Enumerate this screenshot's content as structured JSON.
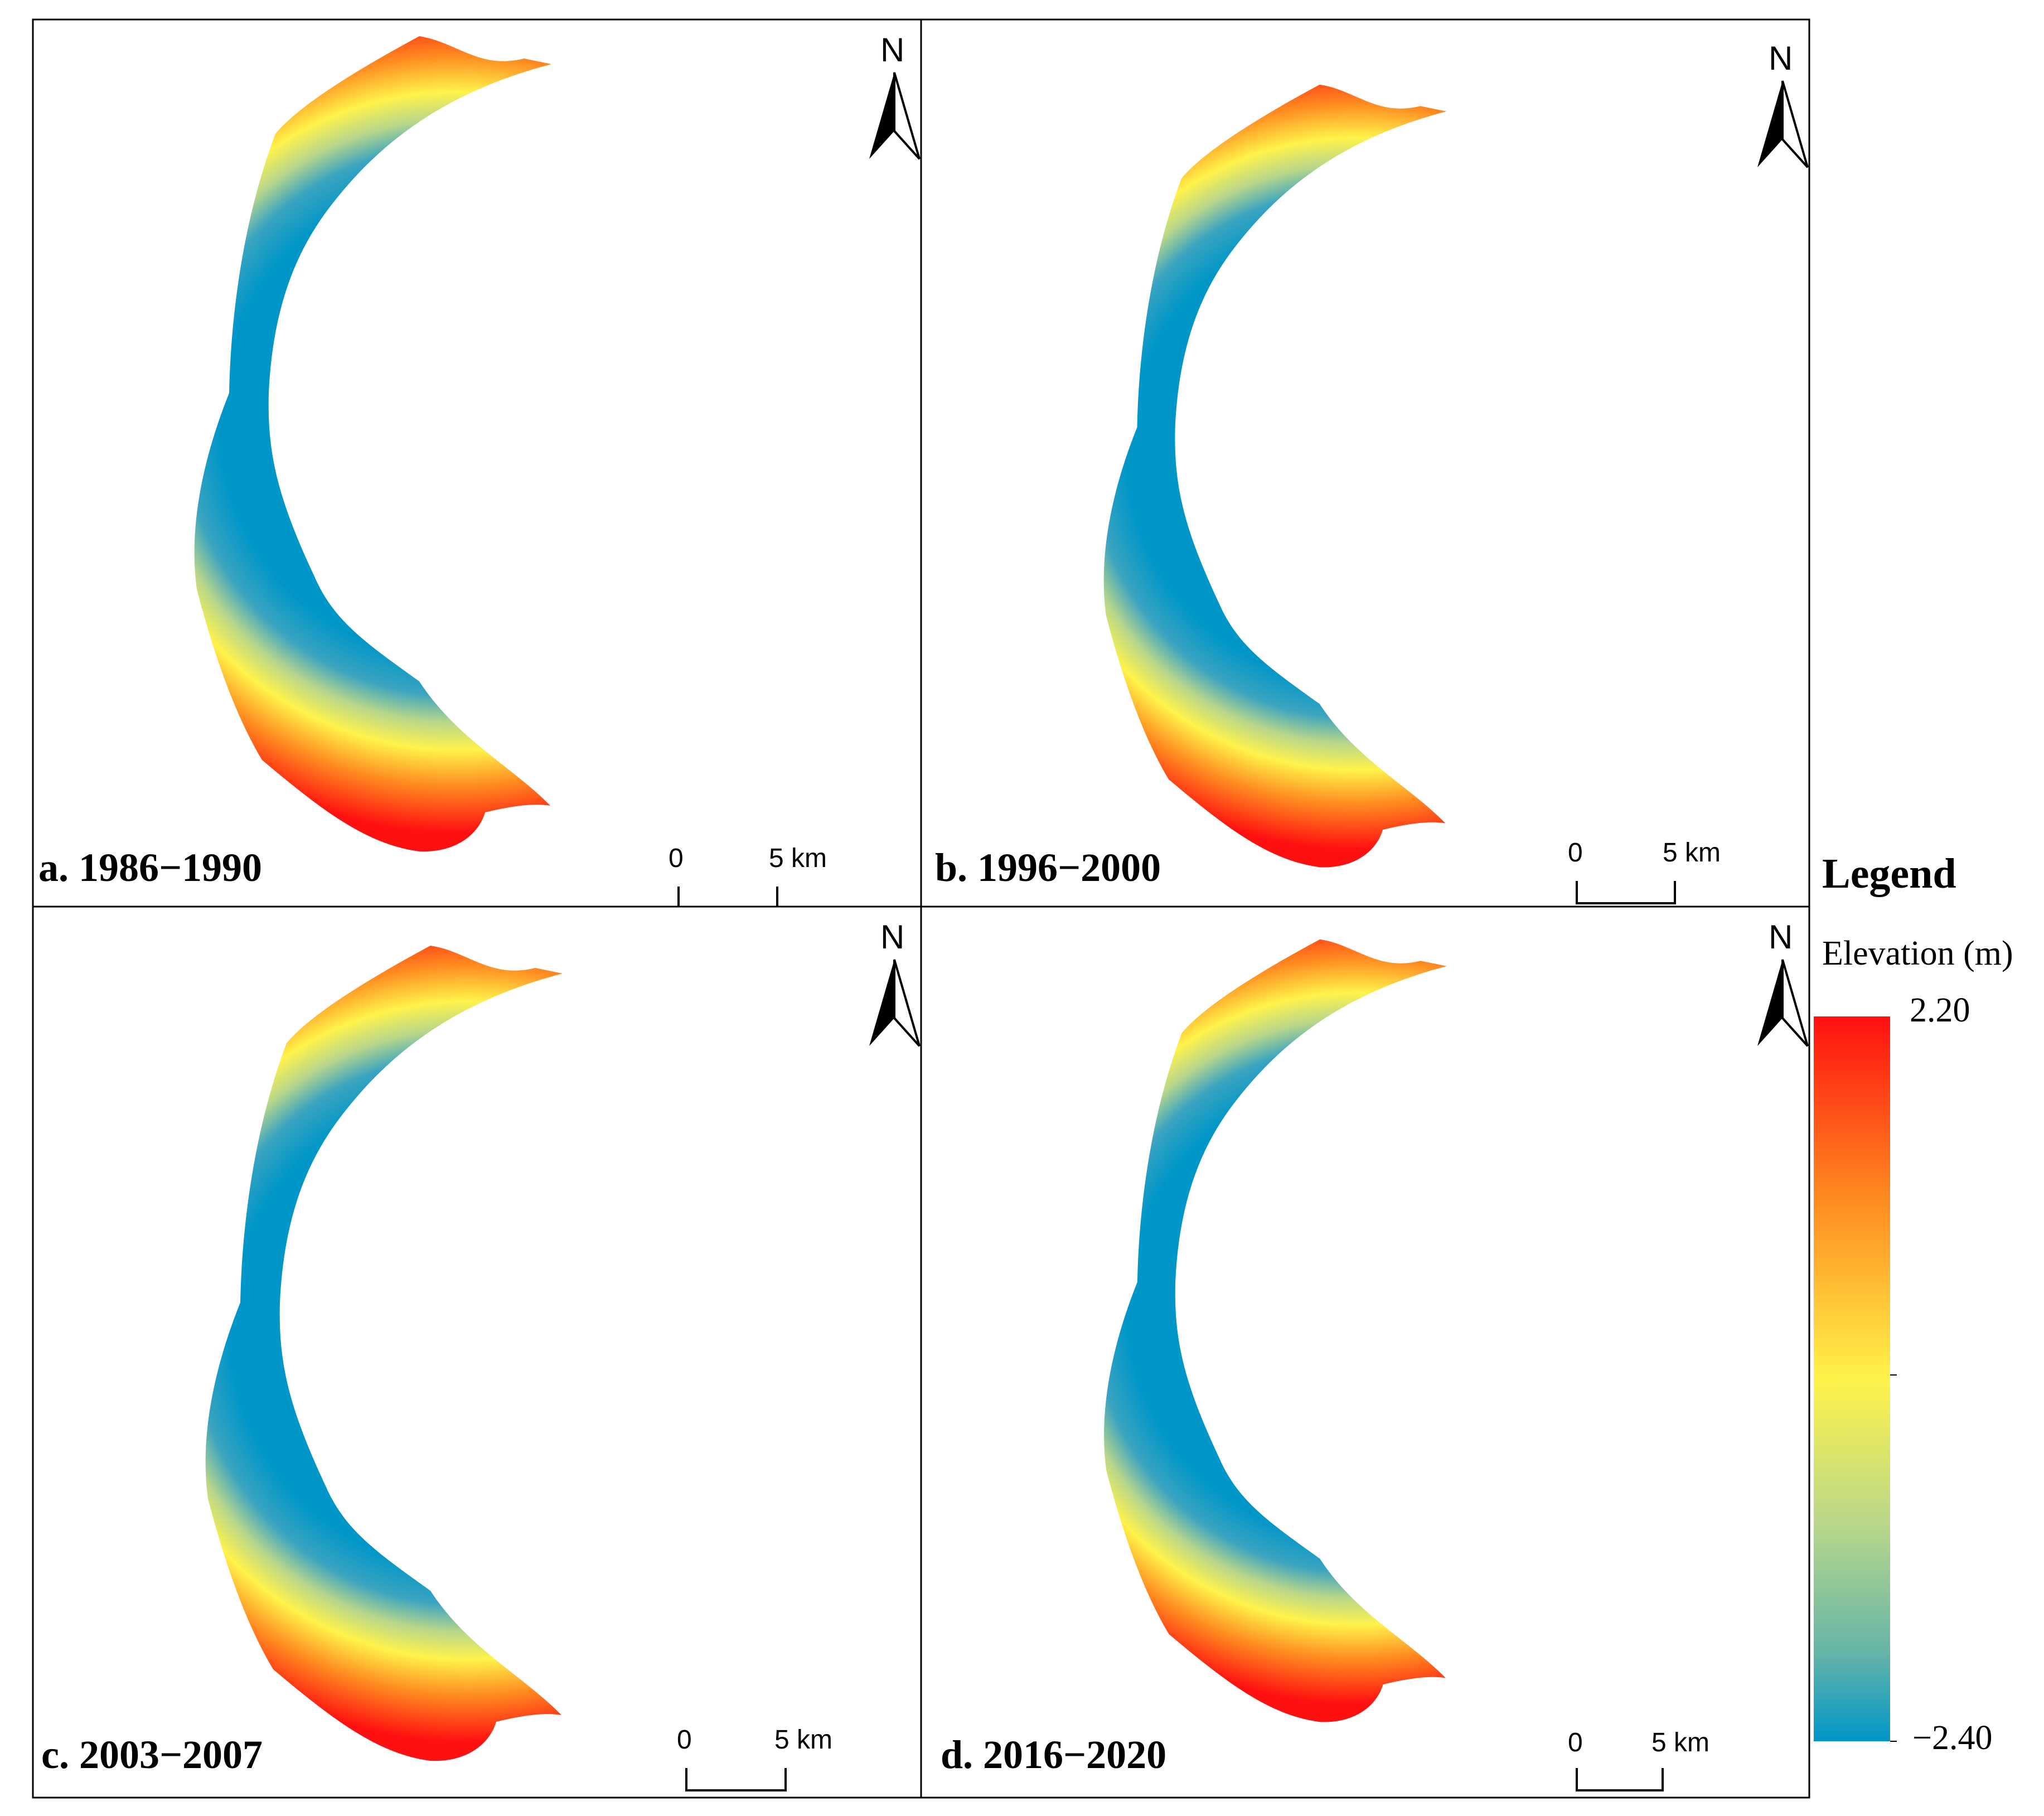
{
  "panels": [
    {
      "label": "a. 1986−1990"
    },
    {
      "label": "b. 1996−2000"
    },
    {
      "label": "c. 2003−2007"
    },
    {
      "label": "d. 2016−2020"
    }
  ],
  "north_label": "N",
  "scale_bar": {
    "zero": "0",
    "distance": "5 km"
  },
  "legend": {
    "title": "Legend",
    "subtitle": "Elevation (m)",
    "max": "2.20",
    "min": "−2.40",
    "colors": [
      "#ff1010",
      "#ff8a20",
      "#fff34a",
      "#b9d78a",
      "#64b4a8",
      "#0096c8"
    ]
  }
}
